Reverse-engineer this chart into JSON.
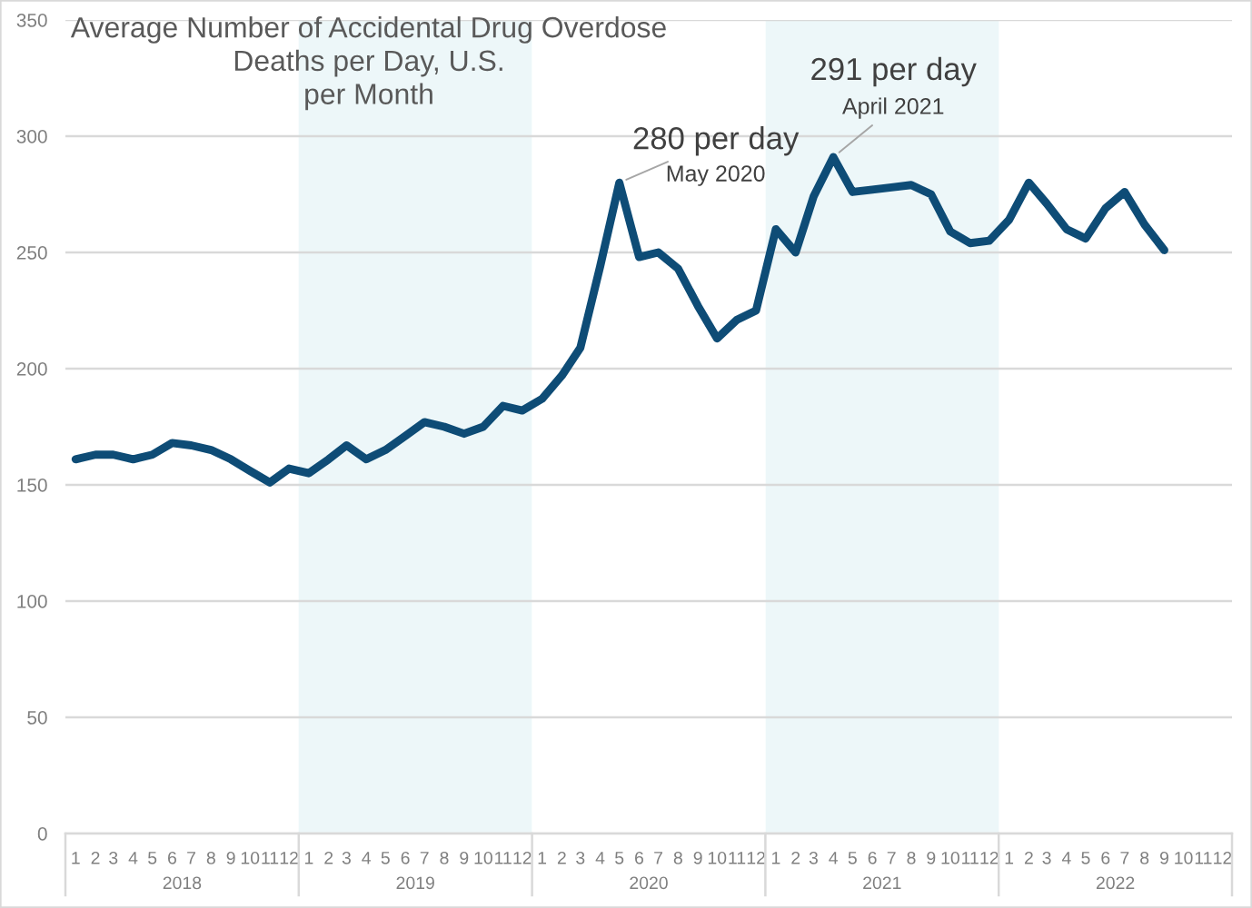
{
  "chart_data": {
    "type": "line",
    "title": "Average Number of Accidental Drug Overdose\nDeaths per Day, U.S.\nper Month",
    "x": [
      "2018-01",
      "2018-02",
      "2018-03",
      "2018-04",
      "2018-05",
      "2018-06",
      "2018-07",
      "2018-08",
      "2018-09",
      "2018-10",
      "2018-11",
      "2018-12",
      "2019-01",
      "2019-02",
      "2019-03",
      "2019-04",
      "2019-05",
      "2019-06",
      "2019-07",
      "2019-08",
      "2019-09",
      "2019-10",
      "2019-11",
      "2019-12",
      "2020-01",
      "2020-02",
      "2020-03",
      "2020-04",
      "2020-05",
      "2020-06",
      "2020-07",
      "2020-08",
      "2020-09",
      "2020-10",
      "2020-11",
      "2020-12",
      "2021-01",
      "2021-02",
      "2021-03",
      "2021-04",
      "2021-05",
      "2021-06",
      "2021-07",
      "2021-08",
      "2021-09",
      "2021-10",
      "2021-11",
      "2021-12",
      "2022-01",
      "2022-02",
      "2022-03",
      "2022-04",
      "2022-05",
      "2022-06",
      "2022-07",
      "2022-08",
      "2022-09"
    ],
    "series": [
      {
        "color": "#0e4c76",
        "values": [
          161,
          163,
          163,
          161,
          163,
          168,
          167,
          165,
          161,
          156,
          151,
          157,
          155,
          161,
          167,
          161,
          165,
          171,
          177,
          175,
          172,
          175,
          184,
          182,
          187,
          197,
          209,
          244,
          280,
          248,
          250,
          243,
          227,
          213,
          221,
          225,
          260,
          250,
          274,
          291,
          276,
          277,
          278,
          279,
          275,
          259,
          254,
          255,
          264,
          280,
          271,
          260,
          256,
          269,
          276,
          262,
          251
        ]
      }
    ],
    "line_style": "solid",
    "xlim": [
      "2017-12-16",
      "2022-12-16"
    ],
    "xticks": [
      {
        "value": "2018-01",
        "label": "1"
      },
      {
        "value": "2018-02",
        "label": "2"
      },
      {
        "value": "2018-03",
        "label": "3"
      },
      {
        "value": "2018-04",
        "label": "4"
      },
      {
        "value": "2018-05",
        "label": "5"
      },
      {
        "value": "2018-06",
        "label": "6"
      },
      {
        "value": "2018-07",
        "label": "7"
      },
      {
        "value": "2018-08",
        "label": "8"
      },
      {
        "value": "2018-09",
        "label": "9"
      },
      {
        "value": "2018-10",
        "label": "10"
      },
      {
        "value": "2018-11",
        "label": "11"
      },
      {
        "value": "2018-12",
        "label": "12"
      },
      {
        "value": "2019-01",
        "label": "1"
      },
      {
        "value": "2019-02",
        "label": "2"
      },
      {
        "value": "2019-03",
        "label": "3"
      },
      {
        "value": "2019-04",
        "label": "4"
      },
      {
        "value": "2019-05",
        "label": "5"
      },
      {
        "value": "2019-06",
        "label": "6"
      },
      {
        "value": "2019-07",
        "label": "7"
      },
      {
        "value": "2019-08",
        "label": "8"
      },
      {
        "value": "2019-09",
        "label": "9"
      },
      {
        "value": "2019-10",
        "label": "10"
      },
      {
        "value": "2019-11",
        "label": "11"
      },
      {
        "value": "2019-12",
        "label": "12"
      },
      {
        "value": "2020-01",
        "label": "1"
      },
      {
        "value": "2020-02",
        "label": "2"
      },
      {
        "value": "2020-03",
        "label": "3"
      },
      {
        "value": "2020-04",
        "label": "4"
      },
      {
        "value": "2020-05",
        "label": "5"
      },
      {
        "value": "2020-06",
        "label": "6"
      },
      {
        "value": "2020-07",
        "label": "7"
      },
      {
        "value": "2020-08",
        "label": "8"
      },
      {
        "value": "2020-09",
        "label": "9"
      },
      {
        "value": "2020-10",
        "label": "10"
      },
      {
        "value": "2020-11",
        "label": "11"
      },
      {
        "value": "2020-12",
        "label": "12"
      },
      {
        "value": "2021-01",
        "label": "1"
      },
      {
        "value": "2021-02",
        "label": "2"
      },
      {
        "value": "2021-03",
        "label": "3"
      },
      {
        "value": "2021-04",
        "label": "4"
      },
      {
        "value": "2021-05",
        "label": "5"
      },
      {
        "value": "2021-06",
        "label": "6"
      },
      {
        "value": "2021-07",
        "label": "7"
      },
      {
        "value": "2021-08",
        "label": "8"
      },
      {
        "value": "2021-09",
        "label": "9"
      },
      {
        "value": "2021-10",
        "label": "10"
      },
      {
        "value": "2021-11",
        "label": "11"
      },
      {
        "value": "2021-12",
        "label": "12"
      },
      {
        "value": "2022-01",
        "label": "1"
      },
      {
        "value": "2022-02",
        "label": "2"
      },
      {
        "value": "2022-03",
        "label": "3"
      },
      {
        "value": "2022-04",
        "label": "4"
      },
      {
        "value": "2022-05",
        "label": "5"
      },
      {
        "value": "2022-06",
        "label": "6"
      },
      {
        "value": "2022-07",
        "label": "7"
      },
      {
        "value": "2022-08",
        "label": "8"
      },
      {
        "value": "2022-09",
        "label": "9"
      },
      {
        "value": "2022-10",
        "label": "10"
      },
      {
        "value": "2022-11",
        "label": "11"
      },
      {
        "value": "2022-12",
        "label": "12"
      }
    ],
    "ylim": [
      0,
      350
    ],
    "yticks": [
      0,
      50,
      100,
      150,
      200,
      250,
      300,
      350
    ],
    "grid": "y",
    "bands": [
      {
        "axis": "x",
        "from": "2018-12-16",
        "to": "2019-12-16",
        "color": "#edf7f9"
      },
      {
        "axis": "x",
        "from": "2020-12-16",
        "to": "2021-12-16",
        "color": "#edf7f9"
      }
    ],
    "annotations": [
      {
        "text": "280 per day",
        "x": "2020-05",
        "y": 280
      },
      {
        "text": "May 2020",
        "x": "2020-05",
        "y": 280
      },
      {
        "text": "291 per day",
        "x": "2021-04",
        "y": 291
      },
      {
        "text": "April 2021",
        "x": "2021-04",
        "y": 291
      },
      "2018",
      "2019",
      "2020",
      "2021",
      "2022"
    ]
  }
}
